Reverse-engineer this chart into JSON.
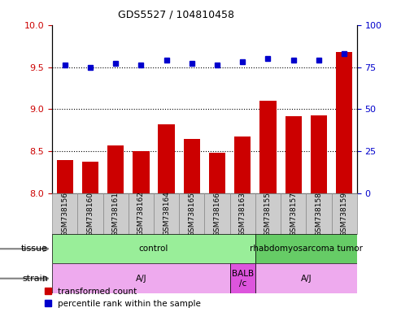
{
  "title": "GDS5527 / 104810458",
  "samples": [
    "GSM738156",
    "GSM738160",
    "GSM738161",
    "GSM738162",
    "GSM738164",
    "GSM738165",
    "GSM738166",
    "GSM738163",
    "GSM738155",
    "GSM738157",
    "GSM738158",
    "GSM738159"
  ],
  "bar_values": [
    8.4,
    8.38,
    8.57,
    8.5,
    8.82,
    8.65,
    8.48,
    8.68,
    9.1,
    8.92,
    8.93,
    9.68
  ],
  "dot_values": [
    76,
    75,
    77,
    76,
    79,
    77,
    76,
    78,
    80,
    79,
    79,
    83
  ],
  "bar_color": "#cc0000",
  "dot_color": "#0000cc",
  "ylim_left": [
    8.0,
    10.0
  ],
  "ylim_right": [
    0,
    100
  ],
  "yticks_left": [
    8.0,
    8.5,
    9.0,
    9.5,
    10.0
  ],
  "yticks_right": [
    0,
    25,
    50,
    75,
    100
  ],
  "grid_values": [
    8.5,
    9.0,
    9.5
  ],
  "tissue_labels": [
    {
      "text": "control",
      "start": 0,
      "end": 7,
      "color": "#99ee99"
    },
    {
      "text": "rhabdomyosarcoma tumor",
      "start": 8,
      "end": 11,
      "color": "#66cc66"
    }
  ],
  "strain_labels": [
    {
      "text": "A/J",
      "start": 0,
      "end": 6,
      "color": "#eeaaee"
    },
    {
      "text": "BALB\n/c",
      "start": 7,
      "end": 7,
      "color": "#dd55dd"
    },
    {
      "text": "A/J",
      "start": 8,
      "end": 11,
      "color": "#eeaaee"
    }
  ],
  "legend_items": [
    {
      "label": "transformed count",
      "color": "#cc0000"
    },
    {
      "label": "percentile rank within the sample",
      "color": "#0000cc"
    }
  ],
  "bar_base": 8.0,
  "left_tick_color": "#cc0000",
  "right_tick_color": "#0000cc",
  "xlabels_bg": "#cccccc",
  "xlabels_border": "#888888"
}
